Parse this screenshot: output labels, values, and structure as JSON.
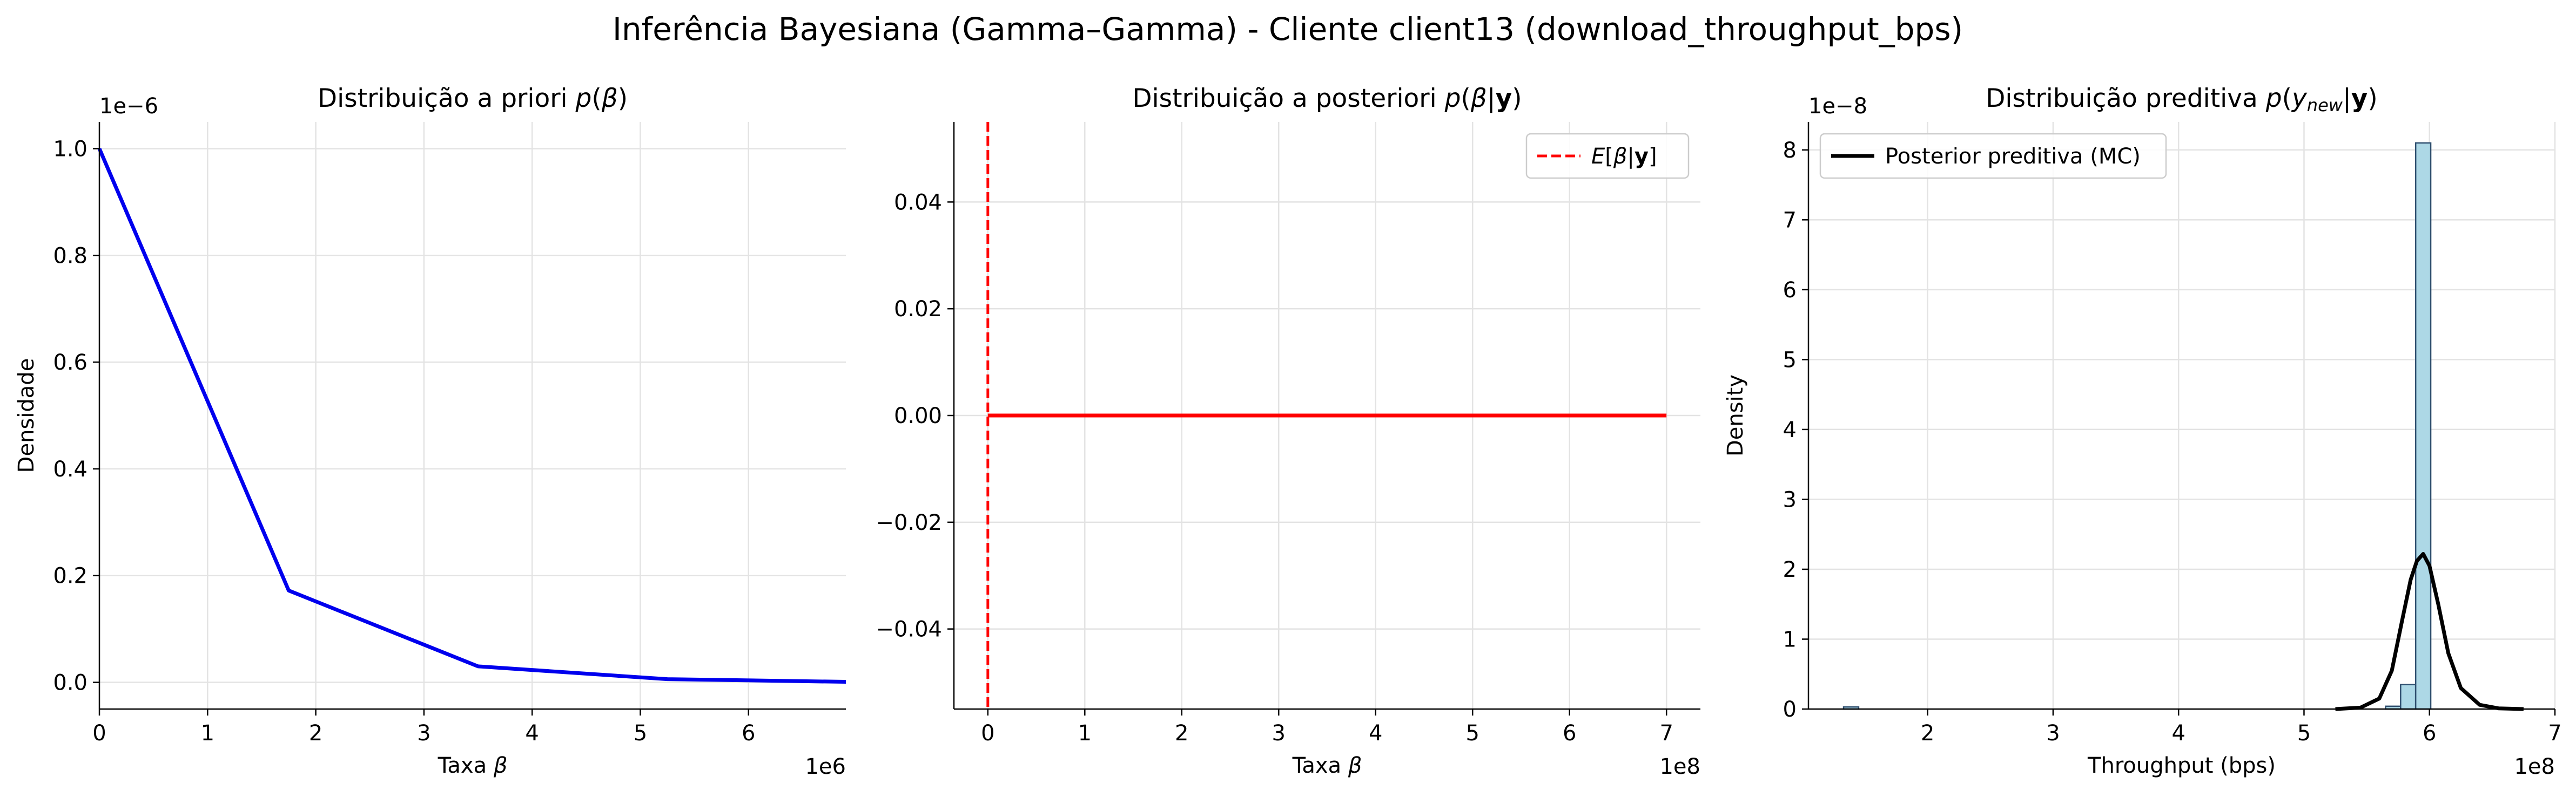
{
  "figure": {
    "suptitle": "Inferência Bayesiana (Gamma–Gamma) - Cliente client13 (download_throughput_bps)"
  },
  "chart_data": [
    {
      "type": "line",
      "title": "Distribuição a priori p(β)",
      "title_parts": [
        "Distribuição a priori ",
        "p",
        "(",
        "β",
        ")"
      ],
      "xlabel": "Taxa β",
      "ylabel": "Densidade",
      "x_offset_label": "1e6",
      "y_offset_label": "1e−6",
      "xlim": [
        0,
        6.9
      ],
      "ylim": [
        -0.05,
        1.05
      ],
      "xticks": [
        0,
        1,
        2,
        3,
        4,
        5,
        6
      ],
      "xtick_labels": [
        "0",
        "1",
        "2",
        "3",
        "4",
        "5",
        "6"
      ],
      "yticks": [
        0.0,
        0.2,
        0.4,
        0.6,
        0.8,
        1.0
      ],
      "ytick_labels": [
        "0.0",
        "0.2",
        "0.4",
        "0.6",
        "0.8",
        "1.0"
      ],
      "grid": true,
      "series": [
        {
          "color": "#0000ee",
          "x": [
            0,
            1.75,
            3.5,
            5.25,
            6.9
          ],
          "y": [
            1.0,
            0.172,
            0.03,
            0.006,
            0.001
          ]
        }
      ]
    },
    {
      "type": "line",
      "title": "Distribuição a posteriori p(β|y)",
      "title_parts": [
        "Distribuição a posteriori ",
        "p",
        "(",
        "β",
        "|",
        "y",
        ")"
      ],
      "xlabel": "Taxa β",
      "ylabel": "",
      "x_offset_label": "1e8",
      "xlim": [
        -0.35,
        7.35
      ],
      "ylim": [
        -0.055,
        0.055
      ],
      "xticks": [
        0,
        1,
        2,
        3,
        4,
        5,
        6,
        7
      ],
      "xtick_labels": [
        "0",
        "1",
        "2",
        "3",
        "4",
        "5",
        "6",
        "7"
      ],
      "yticks": [
        -0.04,
        -0.02,
        0.0,
        0.02,
        0.04
      ],
      "ytick_labels": [
        "−0.04",
        "−0.02",
        "0.00",
        "0.02",
        "0.04"
      ],
      "grid": true,
      "legend": {
        "placement": "upper right",
        "entries": [
          "E[β|y]"
        ]
      },
      "series": [
        {
          "color": "#ff0000",
          "x": [
            0,
            7
          ],
          "y": [
            0,
            0
          ]
        }
      ],
      "vlines": [
        {
          "name": "E[β|y]",
          "x": 0.0,
          "color": "#ff0000",
          "style": "dashed"
        }
      ]
    },
    {
      "type": "bar",
      "title": "Distribuição preditiva p(y_new|y)",
      "title_parts": [
        "Distribuição preditiva ",
        "p",
        "(",
        "y",
        "new",
        "|",
        "y",
        ")"
      ],
      "xlabel": "Throughput (bps)",
      "ylabel": "Density",
      "x_offset_label": "1e8",
      "y_offset_label": "1e−8",
      "xlim": [
        1.05,
        7.0
      ],
      "ylim": [
        0,
        8.4
      ],
      "xticks": [
        2,
        3,
        4,
        5,
        6,
        7
      ],
      "xtick_labels": [
        "2",
        "3",
        "4",
        "5",
        "6",
        "7"
      ],
      "yticks": [
        0,
        1,
        2,
        3,
        4,
        5,
        6,
        7,
        8
      ],
      "ytick_labels": [
        "0",
        "1",
        "2",
        "3",
        "4",
        "5",
        "6",
        "7",
        "8"
      ],
      "grid": true,
      "legend": {
        "placement": "upper left",
        "entries": [
          "Posterior preditiva (MC)"
        ]
      },
      "histogram": {
        "color": "#add8e6",
        "edgecolor": "#2f4f6f",
        "bins": [
          {
            "x0": 1.33,
            "x1": 1.45,
            "density": 0.03
          },
          {
            "x0": 5.65,
            "x1": 5.77,
            "density": 0.04
          },
          {
            "x0": 5.77,
            "x1": 5.89,
            "density": 0.35
          },
          {
            "x0": 5.89,
            "x1": 6.01,
            "density": 8.1
          }
        ]
      },
      "series": [
        {
          "name": "Posterior preditiva (MC)",
          "color": "#000000",
          "x": [
            5.25,
            5.45,
            5.6,
            5.7,
            5.78,
            5.85,
            5.9,
            5.95,
            6.0,
            6.07,
            6.15,
            6.25,
            6.4,
            6.55,
            6.75
          ],
          "y": [
            0.0,
            0.02,
            0.15,
            0.55,
            1.25,
            1.85,
            2.12,
            2.22,
            2.05,
            1.5,
            0.8,
            0.3,
            0.06,
            0.01,
            0.0
          ]
        }
      ]
    }
  ]
}
